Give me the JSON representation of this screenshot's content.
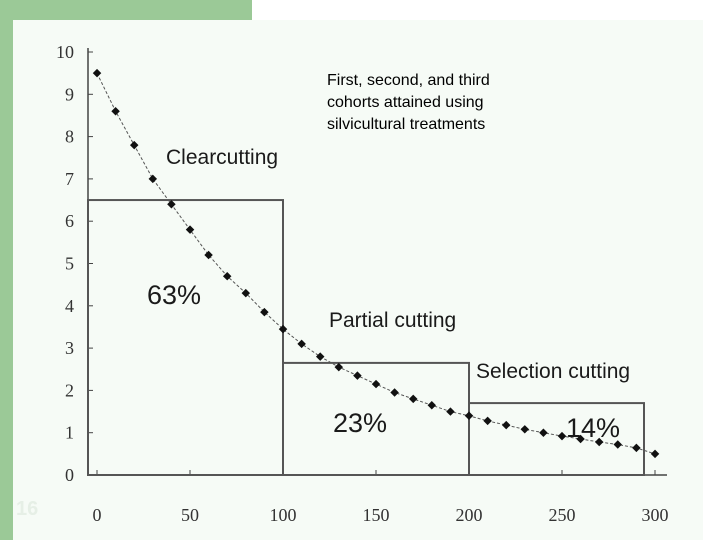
{
  "slide_number": "16",
  "note": "First, second, and third\ncohorts attained using\nsilvicultural treatments",
  "chart_data": {
    "type": "line",
    "xlim": [
      0,
      300
    ],
    "ylim": [
      0,
      10
    ],
    "x_ticks": [
      "0",
      "50",
      "100",
      "150",
      "200",
      "250",
      "300"
    ],
    "y_ticks": [
      "0",
      "1",
      "2",
      "3",
      "4",
      "5",
      "6",
      "7",
      "8",
      "9",
      "10"
    ],
    "grid": false,
    "series": [
      {
        "x": [
          0,
          10,
          20,
          30,
          40,
          50,
          60,
          70,
          80,
          90,
          100,
          110,
          120,
          130,
          140,
          150,
          160,
          170,
          180,
          190,
          200,
          210,
          220,
          230,
          240,
          250,
          260,
          270,
          280,
          290,
          300
        ],
        "y": [
          9.5,
          8.6,
          7.8,
          7.0,
          6.4,
          5.8,
          5.2,
          4.7,
          4.3,
          3.85,
          3.45,
          3.1,
          2.8,
          2.55,
          2.35,
          2.15,
          1.95,
          1.8,
          1.65,
          1.5,
          1.4,
          1.28,
          1.18,
          1.08,
          1.0,
          0.92,
          0.85,
          0.78,
          0.72,
          0.64,
          0.5
        ]
      }
    ],
    "regions": [
      {
        "name": "Clearcutting",
        "x_start": 0,
        "x_end": 100,
        "height": 6.5,
        "percent": "63%"
      },
      {
        "name": "Partial cutting",
        "x_start": 100,
        "x_end": 200,
        "height": 2.65,
        "percent": "23%"
      },
      {
        "name": "Selection cutting",
        "x_start": 200,
        "x_end": 300,
        "height": 1.7,
        "percent": "14%"
      }
    ]
  }
}
